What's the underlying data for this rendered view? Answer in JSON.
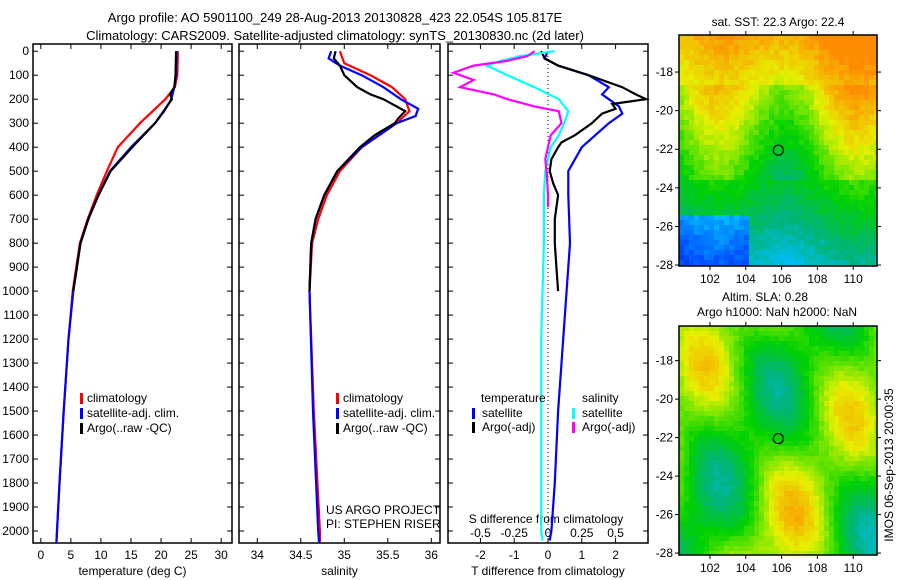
{
  "title_line1": "Argo profile: AO 5901100_249 28-Aug-2013 20130828_423 22.054S 105.817E",
  "title_line2": "Climatology: CARS2009. Satellite-adjusted climatology: synTS_20130830.nc (2d later)",
  "side_stamp": "IMOS 06-Sep-2013 20:00:35",
  "colors": {
    "clim": "#ff0000",
    "sat": "#0000ff",
    "argo": "#000000",
    "s_sat": "#00ffff",
    "s_argo": "#ff00ff"
  },
  "chart_data": [
    {
      "type": "line",
      "name": "temperature",
      "xlabel": "temperature (deg C)",
      "xlim": [
        -1.3,
        31.8
      ],
      "ylim": [
        2050,
        -30
      ],
      "xticks": [
        0,
        5,
        10,
        15,
        20,
        25,
        30
      ],
      "yticks": [
        0,
        100,
        200,
        300,
        400,
        500,
        600,
        700,
        800,
        900,
        1000,
        1100,
        1200,
        1300,
        1400,
        1500,
        1600,
        1700,
        1800,
        1900,
        2000
      ],
      "legend": [
        "climatology",
        "satellite-adj. clim.",
        "Argo(..raw -QC)"
      ],
      "series": [
        {
          "name": "climatology",
          "color": "clim",
          "depth": [
            0,
            100,
            150,
            200,
            300,
            400,
            500,
            600,
            700,
            800,
            1000,
            1200,
            1500,
            1800,
            2000,
            2050
          ],
          "values": [
            22.8,
            22.7,
            22.3,
            20.7,
            16.5,
            12.8,
            11,
            9.3,
            7.8,
            6.5,
            5.3,
            4.6,
            3.8,
            3.1,
            2.7,
            2.6
          ]
        },
        {
          "name": "satellite-adj. clim.",
          "color": "sat",
          "depth": [
            0,
            100,
            150,
            200,
            250,
            300,
            400,
            500,
            600,
            700,
            800,
            1000,
            1200,
            1500,
            1800,
            2000,
            2050
          ],
          "values": [
            22.6,
            22.5,
            22.2,
            21.7,
            20.5,
            19,
            15,
            11.5,
            9.6,
            7.9,
            6.6,
            5.4,
            4.6,
            3.8,
            3.1,
            2.7,
            2.6
          ]
        },
        {
          "name": "Argo(..raw -QC)",
          "color": "argo",
          "depth": [
            0,
            100,
            150,
            180,
            200,
            250,
            300,
            400,
            500,
            600,
            700,
            800,
            1000
          ],
          "values": [
            22.5,
            22.4,
            22.2,
            21.5,
            21.8,
            20.4,
            19,
            15.2,
            11.6,
            9.6,
            7.9,
            6.6,
            5.4
          ]
        }
      ]
    },
    {
      "type": "line",
      "name": "salinity",
      "xlabel": "salinity",
      "xlim": [
        33.79,
        36.1
      ],
      "ylim": [
        2050,
        -30
      ],
      "xticks": [
        34,
        34.5,
        35,
        35.5,
        36
      ],
      "legend": [
        "climatology",
        "satellite-adj. clim.",
        "Argo(..raw -QC)"
      ],
      "annotation": [
        "US ARGO PROJECT",
        "PI: STEPHEN RISER"
      ],
      "series": [
        {
          "name": "climatology",
          "color": "clim",
          "depth": [
            0,
            50,
            100,
            150,
            200,
            250,
            300,
            350,
            400,
            500,
            600,
            700,
            800,
            1000,
            1500,
            2000,
            2050
          ],
          "values": [
            34.95,
            35.0,
            35.3,
            35.55,
            35.7,
            35.75,
            35.6,
            35.4,
            35.2,
            34.95,
            34.8,
            34.7,
            34.63,
            34.6,
            34.65,
            34.72,
            34.72
          ]
        },
        {
          "name": "satellite-adj. clim.",
          "color": "sat",
          "depth": [
            0,
            30,
            60,
            100,
            150,
            200,
            240,
            270,
            300,
            350,
            400,
            500,
            600,
            700,
            800,
            1000,
            1500,
            2000,
            2050
          ],
          "values": [
            34.85,
            34.82,
            34.95,
            35.2,
            35.45,
            35.65,
            35.85,
            35.82,
            35.6,
            35.4,
            35.2,
            34.92,
            34.77,
            34.67,
            34.62,
            34.6,
            34.64,
            34.7,
            34.71
          ]
        },
        {
          "name": "Argo(..raw -QC)",
          "color": "argo",
          "depth": [
            0,
            30,
            60,
            100,
            150,
            180,
            200,
            250,
            280,
            300,
            350,
            400,
            500,
            600,
            700,
            800,
            1000
          ],
          "values": [
            34.9,
            34.88,
            34.95,
            35.0,
            35.15,
            35.3,
            35.45,
            35.7,
            35.62,
            35.58,
            35.35,
            35.18,
            34.92,
            34.77,
            34.67,
            34.62,
            34.6
          ]
        }
      ]
    },
    {
      "type": "line",
      "name": "difference",
      "xlabel": "T difference from climatology",
      "xlabel2": "S difference from climatology",
      "xlim": [
        -2.96,
        2.96
      ],
      "ylim": [
        2050,
        -30
      ],
      "xticks": [
        -2,
        -1,
        0,
        1,
        2
      ],
      "xticks2": [
        "-0.5",
        "-0.25",
        "0",
        "0.25",
        "0.5"
      ],
      "xticks2_values": [
        -0.5,
        -0.25,
        0,
        0.25,
        0.5
      ],
      "legend_headers": [
        "temperature",
        "salinity"
      ],
      "legend": [
        "satellite",
        "Argo(-adj)",
        "satellite",
        "Argo(-adj)"
      ],
      "series": [
        {
          "name": "T satellite",
          "color": "sat",
          "unit": "T",
          "depth": [
            0,
            30,
            60,
            100,
            150,
            180,
            200,
            230,
            260,
            300,
            350,
            400,
            500,
            600,
            800,
            1000,
            1200,
            1500,
            1800,
            2000,
            2040
          ],
          "values": [
            0,
            -0.1,
            0.3,
            1.2,
            1.8,
            1.6,
            1.8,
            2.1,
            2.2,
            1.8,
            1.4,
            1.0,
            0.6,
            0.6,
            0.65,
            0.55,
            0.45,
            0.3,
            0.2,
            0.1,
            0.05
          ]
        },
        {
          "name": "T Argo(-adj)",
          "color": "argo",
          "unit": "T",
          "depth": [
            0,
            30,
            60,
            100,
            150,
            180,
            200,
            220,
            240,
            260,
            300,
            350,
            380,
            400,
            450,
            500,
            550,
            600,
            700,
            800,
            900,
            1000
          ],
          "values": [
            -0.2,
            -0.1,
            0.3,
            1.2,
            2.2,
            2.6,
            2.9,
            1.9,
            2.0,
            1.6,
            1.3,
            0.8,
            0.4,
            0.3,
            0.1,
            0.05,
            0.15,
            0.3,
            0.2,
            0.2,
            0.25,
            0.3
          ]
        },
        {
          "name": "S satellite",
          "color": "s_sat",
          "unit": "S",
          "depth": [
            0,
            20,
            40,
            60,
            100,
            150,
            200,
            250,
            300,
            350,
            400,
            500,
            600,
            800,
            1200,
            1600,
            2000,
            2040
          ],
          "values": [
            0.05,
            -0.2,
            -0.35,
            -0.45,
            -0.3,
            -0.1,
            0.08,
            0.15,
            0.12,
            0.08,
            0.02,
            -0.02,
            -0.03,
            -0.03,
            -0.05,
            -0.05,
            -0.05,
            -0.04
          ]
        },
        {
          "name": "S Argo(-adj)",
          "color": "s_argo",
          "unit": "S",
          "depth": [
            0,
            20,
            40,
            60,
            90,
            120,
            150,
            180,
            200,
            230,
            250,
            300,
            350,
            400,
            450,
            500,
            600,
            650
          ],
          "values": [
            -0.1,
            -0.15,
            -0.3,
            -0.55,
            -0.7,
            -0.55,
            -0.65,
            -0.4,
            -0.3,
            -0.1,
            0.08,
            0.1,
            0.02,
            0.0,
            -0.02,
            -0.01,
            0.0,
            0.0
          ]
        }
      ]
    },
    {
      "type": "heatmap",
      "name": "sst-map",
      "title": "sat. SST: 22.3 Argo: 22.4",
      "xlim": [
        100.27,
        111.33
      ],
      "ylim": [
        -28.05,
        -16.08
      ],
      "xticks": [
        102,
        104,
        106,
        108,
        110
      ],
      "yticks": [
        -18,
        -20,
        -22,
        -24,
        -26,
        -28
      ],
      "marker": {
        "lon": 105.82,
        "lat": -22.05
      }
    },
    {
      "type": "heatmap",
      "name": "sla-map",
      "title": "Altim. SLA: 0.28",
      "subtitle": "Argo h1000: NaN h2000: NaN",
      "xlim": [
        100.27,
        111.33
      ],
      "ylim": [
        -28.1,
        -16.2
      ],
      "xticks": [
        102,
        104,
        106,
        108,
        110
      ],
      "yticks": [
        -18,
        -20,
        -22,
        -24,
        -26,
        -28
      ],
      "marker": {
        "lon": 105.82,
        "lat": -22.05
      }
    }
  ]
}
